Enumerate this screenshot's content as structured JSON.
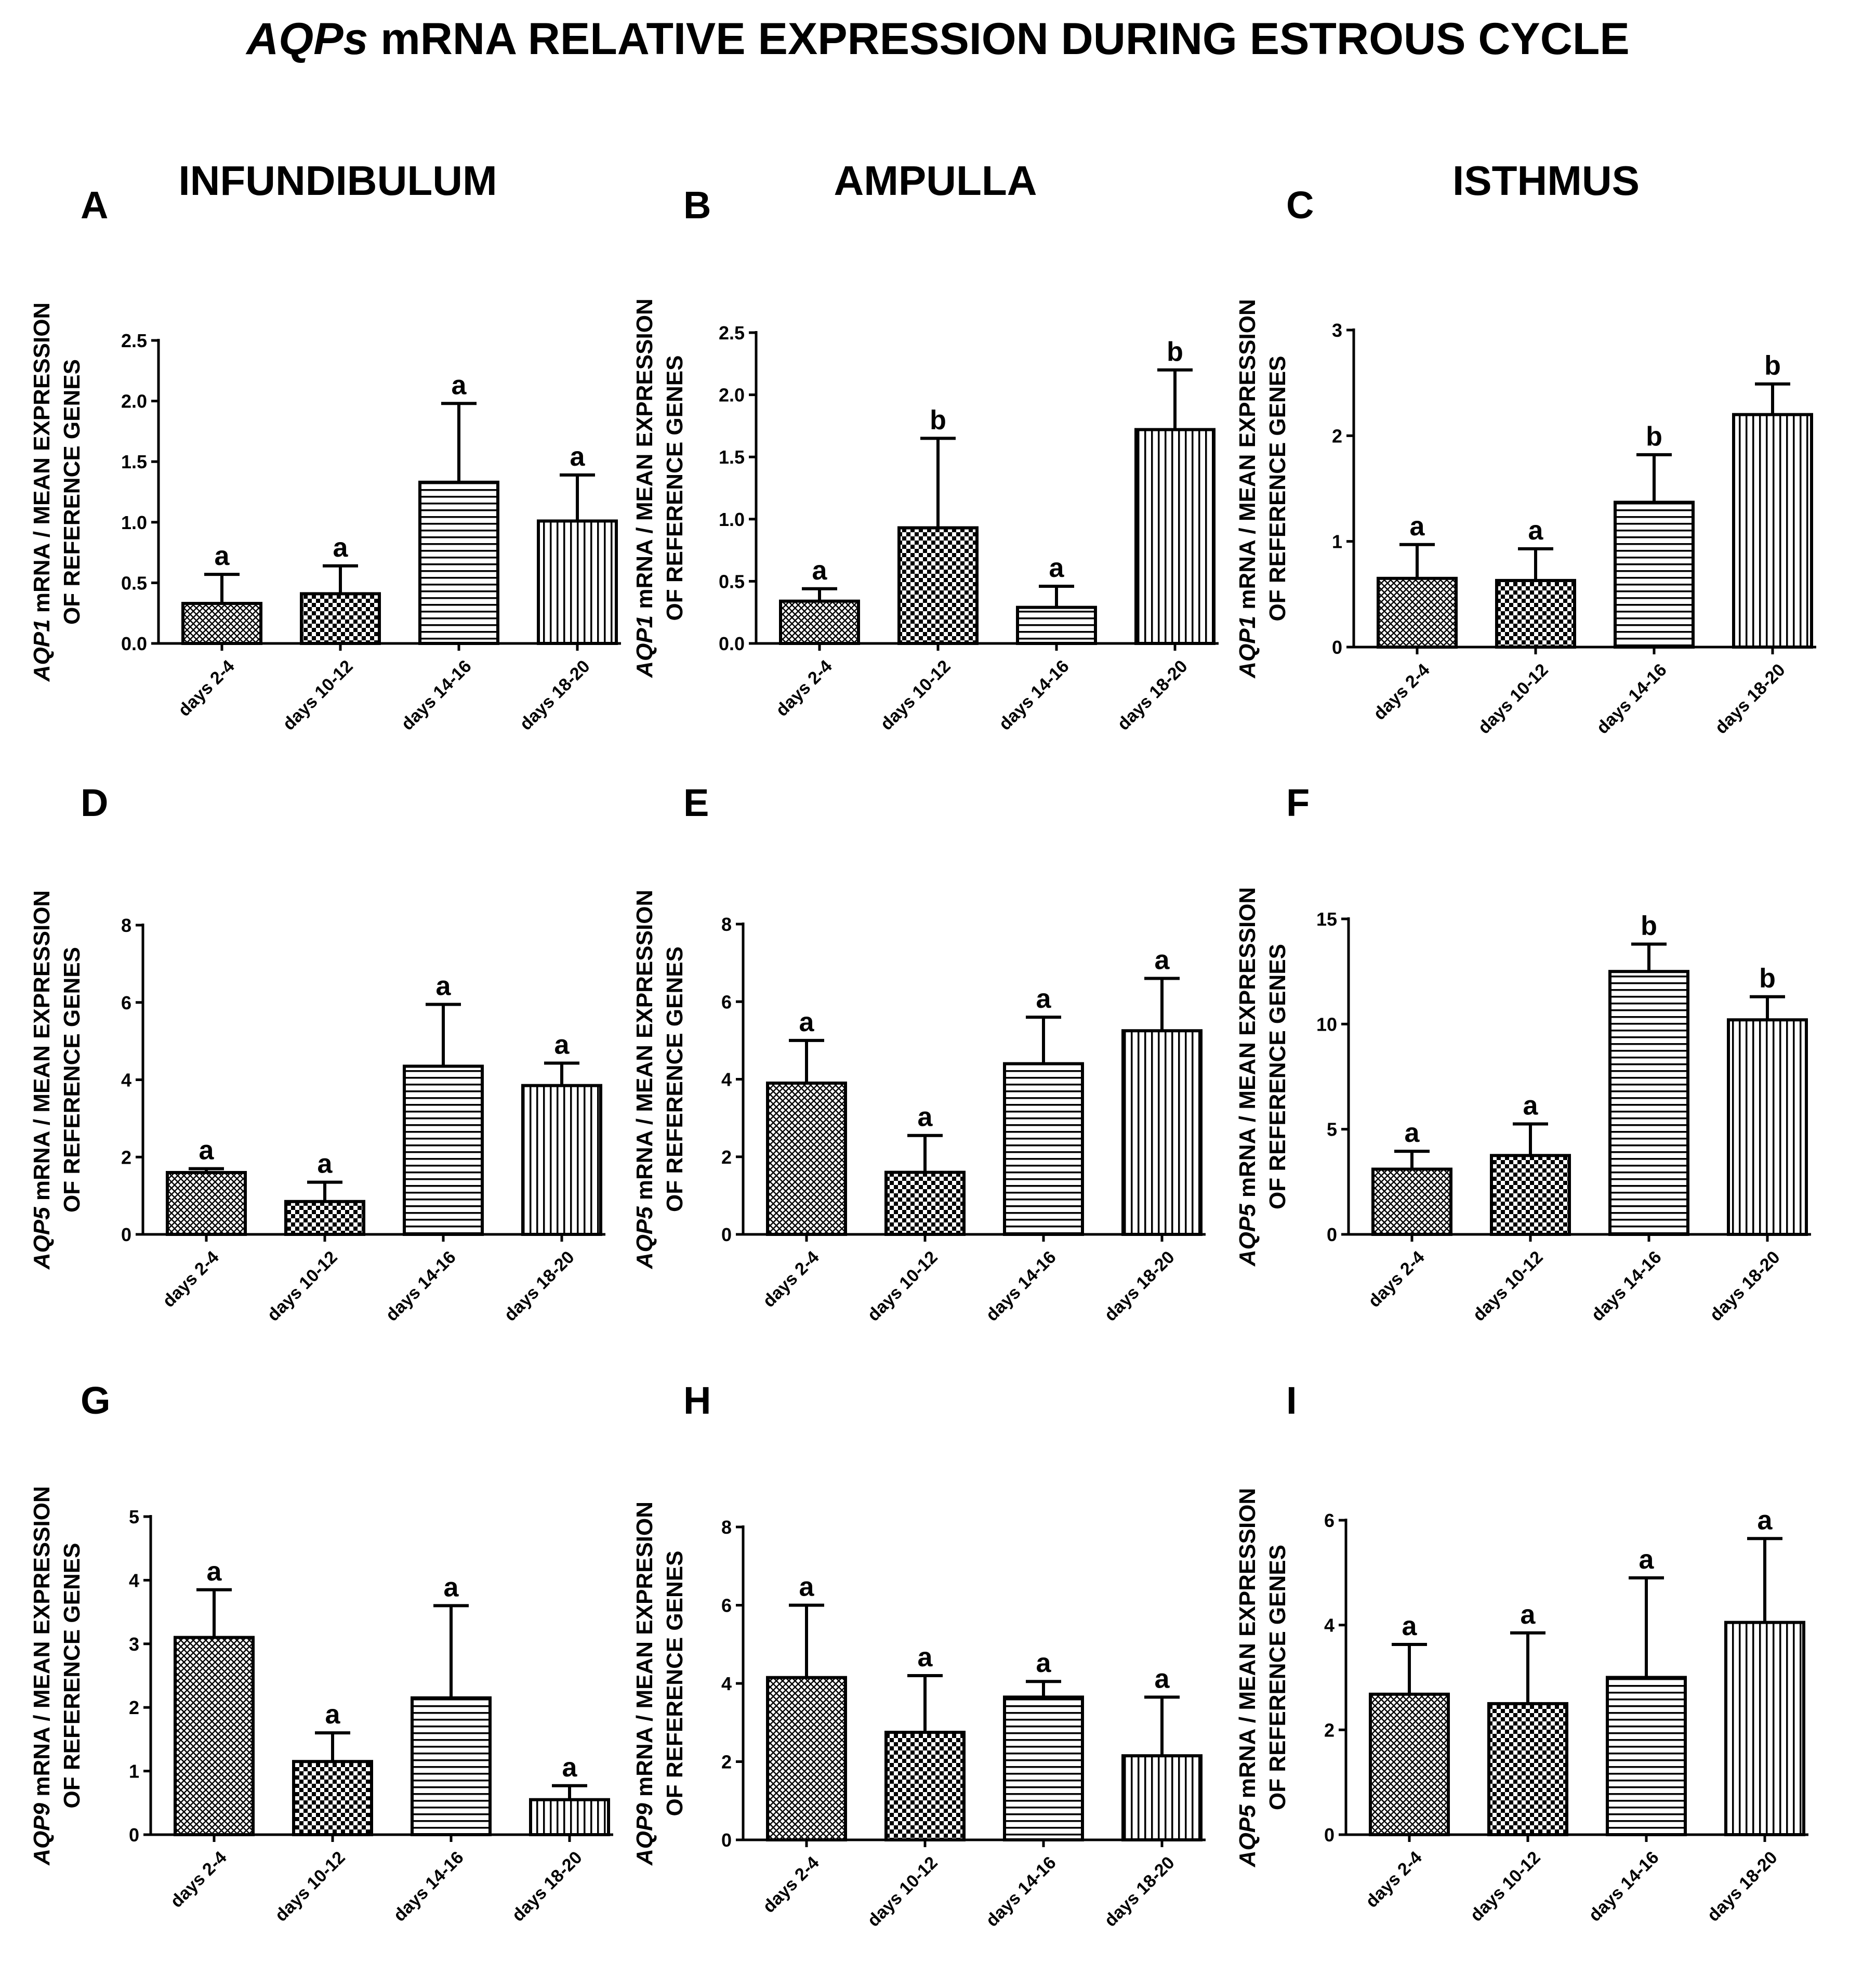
{
  "figure": {
    "title_italic": "AQPs",
    "title_rest": " mRNA RELATIVE EXPRESSION DURING ESTROUS CYCLE",
    "columns": [
      "INFUNDIBULUM",
      "AMPULLA",
      "ISTHMUS"
    ]
  },
  "chart_data": [
    {
      "panel": "A",
      "type": "bar",
      "categories": [
        "days 2-4",
        "days 10-12",
        "days 14-16",
        "days 18-20"
      ],
      "values": [
        0.33,
        0.41,
        1.33,
        1.01
      ],
      "errors": [
        0.24,
        0.23,
        0.65,
        0.38
      ],
      "significance": [
        "a",
        "a",
        "a",
        "a"
      ],
      "ylabel_gene": "AQP1",
      "ylabel_line1_rest": " mRNA / MEAN EXPRESSION",
      "ylabel_line2": "OF REFERENCE GENES",
      "ylim": [
        0,
        2.5
      ],
      "yticks": [
        0.0,
        0.5,
        1.0,
        1.5,
        2.0,
        2.5
      ],
      "ytick_labels": [
        "0.0",
        "0.5",
        "1.0",
        "1.5",
        "2.0",
        "2.5"
      ]
    },
    {
      "panel": "B",
      "type": "bar",
      "categories": [
        "days 2-4",
        "days 10-12",
        "days 14-16",
        "days 18-20"
      ],
      "values": [
        0.34,
        0.93,
        0.29,
        1.72
      ],
      "errors": [
        0.1,
        0.72,
        0.17,
        0.48
      ],
      "significance": [
        "a",
        "b",
        "a",
        "b"
      ],
      "ylabel_gene": "AQP1",
      "ylabel_line1_rest": " mRNA / MEAN EXPRESSION",
      "ylabel_line2": "OF REFERENCE GENES",
      "ylim": [
        0,
        2.5
      ],
      "yticks": [
        0.0,
        0.5,
        1.0,
        1.5,
        2.0,
        2.5
      ],
      "ytick_labels": [
        "0.0",
        "0.5",
        "1.0",
        "1.5",
        "2.0",
        "2.5"
      ]
    },
    {
      "panel": "C",
      "type": "bar",
      "categories": [
        "days 2-4",
        "days 10-12",
        "days 14-16",
        "days 18-20"
      ],
      "values": [
        0.65,
        0.63,
        1.37,
        2.2
      ],
      "errors": [
        0.32,
        0.3,
        0.45,
        0.29
      ],
      "significance": [
        "a",
        "a",
        "b",
        "b"
      ],
      "ylabel_gene": "AQP1",
      "ylabel_line1_rest": " mRNA / MEAN EXPRESSION",
      "ylabel_line2": "OF REFERENCE GENES",
      "ylim": [
        0,
        3
      ],
      "yticks": [
        0,
        1,
        2,
        3
      ],
      "ytick_labels": [
        "0",
        "1",
        "2",
        "3"
      ]
    },
    {
      "panel": "D",
      "type": "bar",
      "categories": [
        "days 2-4",
        "days 10-12",
        "days 14-16",
        "days 18-20"
      ],
      "values": [
        1.6,
        0.85,
        4.35,
        3.85
      ],
      "errors": [
        0.1,
        0.5,
        1.6,
        0.58
      ],
      "significance": [
        "a",
        "a",
        "a",
        "a"
      ],
      "ylabel_gene": "AQP5",
      "ylabel_line1_rest": " mRNA / MEAN EXPRESSION",
      "ylabel_line2": "OF REFERENCE GENES",
      "ylim": [
        0,
        8
      ],
      "yticks": [
        0,
        2,
        4,
        6,
        8
      ],
      "ytick_labels": [
        "0",
        "2",
        "4",
        "6",
        "8"
      ]
    },
    {
      "panel": "E",
      "type": "bar",
      "categories": [
        "days 2-4",
        "days 10-12",
        "days 14-16",
        "days 18-20"
      ],
      "values": [
        3.9,
        1.6,
        4.4,
        5.25
      ],
      "errors": [
        1.1,
        0.95,
        1.2,
        1.35
      ],
      "significance": [
        "a",
        "a",
        "a",
        "a"
      ],
      "ylabel_gene": "AQP5",
      "ylabel_line1_rest": " mRNA / MEAN EXPRESSION",
      "ylabel_line2": "OF REFERENCE GENES",
      "ylim": [
        0,
        8
      ],
      "yticks": [
        0,
        2,
        4,
        6,
        8
      ],
      "ytick_labels": [
        "0",
        "2",
        "4",
        "6",
        "8"
      ]
    },
    {
      "panel": "F",
      "type": "bar",
      "categories": [
        "days 2-4",
        "days 10-12",
        "days 14-16",
        "days 18-20"
      ],
      "values": [
        3.1,
        3.75,
        12.5,
        10.2
      ],
      "errors": [
        0.85,
        1.5,
        1.3,
        1.1
      ],
      "significance": [
        "a",
        "a",
        "b",
        "b"
      ],
      "ylabel_gene": "AQP5",
      "ylabel_line1_rest": " mRNA / MEAN EXPRESSION",
      "ylabel_line2": "OF REFERENCE GENES",
      "ylim": [
        0,
        15
      ],
      "yticks": [
        0,
        5,
        10,
        15
      ],
      "ytick_labels": [
        "0",
        "5",
        "10",
        "15"
      ]
    },
    {
      "panel": "G",
      "type": "bar",
      "categories": [
        "days 2-4",
        "days 10-12",
        "days 14-16",
        "days 18-20"
      ],
      "values": [
        3.1,
        1.15,
        2.15,
        0.55
      ],
      "errors": [
        0.75,
        0.45,
        1.45,
        0.22
      ],
      "significance": [
        "a",
        "a",
        "a",
        "a"
      ],
      "ylabel_gene": "AQP9",
      "ylabel_line1_rest": " mRNA / MEAN EXPRESSION",
      "ylabel_line2": "OF REFERENCE GENES",
      "ylim": [
        0,
        5
      ],
      "yticks": [
        0,
        1,
        2,
        3,
        4,
        5
      ],
      "ytick_labels": [
        "0",
        "1",
        "2",
        "3",
        "4",
        "5"
      ]
    },
    {
      "panel": "H",
      "type": "bar",
      "categories": [
        "days 2-4",
        "days 10-12",
        "days 14-16",
        "days 18-20"
      ],
      "values": [
        4.15,
        2.75,
        3.65,
        2.15
      ],
      "errors": [
        1.85,
        1.45,
        0.4,
        1.5
      ],
      "significance": [
        "a",
        "a",
        "a",
        "a"
      ],
      "ylabel_gene": "AQP9",
      "ylabel_line1_rest": " mRNA / MEAN EXPRESION",
      "ylabel_line2": "OF REFERENCE GENES",
      "ylim": [
        0,
        8
      ],
      "yticks": [
        0,
        2,
        4,
        6,
        8
      ],
      "ytick_labels": [
        "0",
        "2",
        "4",
        "6",
        "8"
      ]
    },
    {
      "panel": "I",
      "type": "bar",
      "categories": [
        "days 2-4",
        "days 10-12",
        "days 14-16",
        "days 18-20"
      ],
      "values": [
        2.68,
        2.5,
        3.0,
        4.05
      ],
      "errors": [
        0.95,
        1.35,
        1.9,
        1.6
      ],
      "significance": [
        "a",
        "a",
        "a",
        "a"
      ],
      "ylabel_gene": "AQP5",
      "ylabel_line1_rest": " mRNA / MEAN EXPRESSION",
      "ylabel_line2": "OF REFERENCE GENES",
      "ylim": [
        0,
        6
      ],
      "yticks": [
        0,
        2,
        4,
        6
      ],
      "ytick_labels": [
        "0",
        "2",
        "4",
        "6"
      ]
    }
  ]
}
